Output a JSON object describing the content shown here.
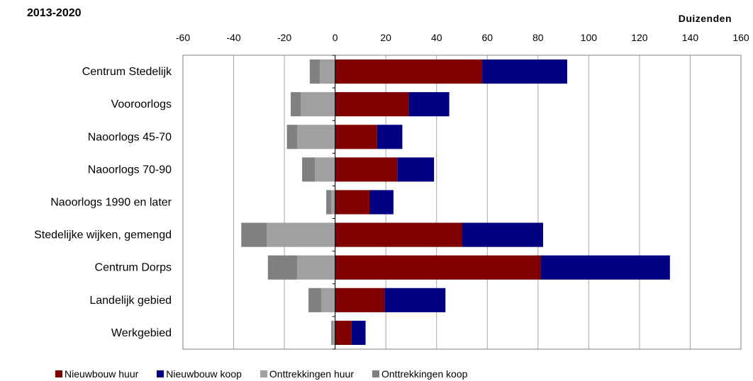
{
  "header": {
    "title": "2013-2020",
    "unit": "Duizenden"
  },
  "chart_data": {
    "type": "bar",
    "orientation": "horizontal",
    "stacked": true,
    "title": "2013-2020",
    "xlabel": "",
    "ylabel": "",
    "xlim": [
      -60,
      160
    ],
    "xticks": [
      -60,
      -40,
      -20,
      0,
      20,
      40,
      60,
      80,
      100,
      120,
      140,
      160
    ],
    "grid": true,
    "legend_position": "bottom",
    "categories": [
      "Centrum Stedelijk",
      "Vooroorlogs",
      "Naoorlogs 45-70",
      "Naoorlogs 70-90",
      "Naoorlogs 1990 en later",
      "Stedelijke wijken, gemengd",
      "Centrum Dorps",
      "Landelijk gebied",
      "Werkgebied"
    ],
    "series": [
      {
        "name": "Nieuwbouw huur",
        "color": "#800000",
        "values": [
          58,
          29,
          16.5,
          24.5,
          13.5,
          50,
          81,
          19.5,
          6.5
        ]
      },
      {
        "name": "Nieuwbouw koop",
        "color": "#000080",
        "values": [
          33.5,
          16,
          10,
          14.5,
          9.5,
          32,
          51,
          24,
          5.5
        ]
      },
      {
        "name": "Onttrekkingen huur",
        "color": "#a0a0a0",
        "values": [
          -6,
          -13.5,
          -15,
          -8,
          -1.5,
          -27,
          -15,
          -5.5,
          -1
        ]
      },
      {
        "name": "Onttrekkingen koop",
        "color": "#808080",
        "values": [
          -4,
          -4,
          -4,
          -5,
          -2,
          -10,
          -11.5,
          -5,
          -0.5
        ]
      }
    ]
  }
}
